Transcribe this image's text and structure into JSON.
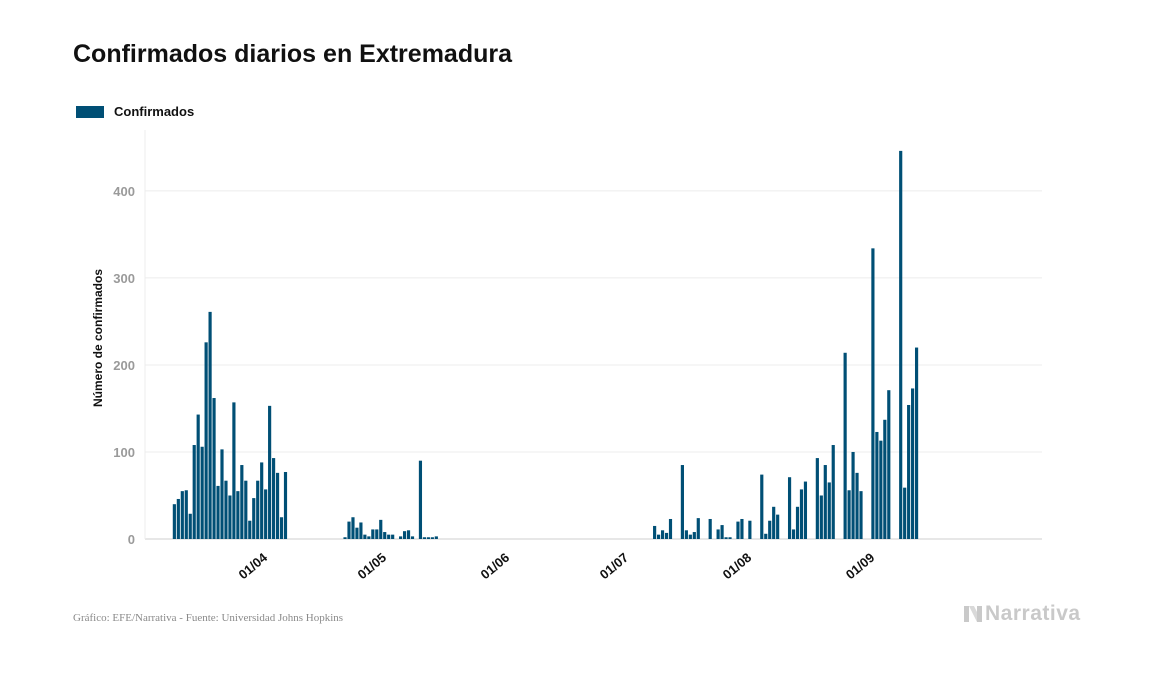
{
  "chart_data": {
    "type": "bar",
    "title": "Confirmados diarios en Extremadura",
    "ylabel": "Número de confirmados",
    "xlabel": "",
    "ylim": [
      0,
      470
    ],
    "yticks": [
      0,
      100,
      200,
      300,
      400
    ],
    "grid": true,
    "legend_position": "top-left",
    "xticks": [
      {
        "date": "2020-04-01",
        "label": "01/04"
      },
      {
        "date": "2020-05-01",
        "label": "01/05"
      },
      {
        "date": "2020-06-01",
        "label": "01/06"
      },
      {
        "date": "2020-07-01",
        "label": "01/07"
      },
      {
        "date": "2020-08-01",
        "label": "01/08"
      },
      {
        "date": "2020-09-01",
        "label": "01/09"
      }
    ],
    "x_range": [
      "2020-03-04",
      "2020-10-16"
    ],
    "series": [
      {
        "name": "Confirmados",
        "color": "#004f75",
        "points": [
          [
            "2020-03-11",
            40
          ],
          [
            "2020-03-12",
            46
          ],
          [
            "2020-03-13",
            55
          ],
          [
            "2020-03-14",
            56
          ],
          [
            "2020-03-15",
            29
          ],
          [
            "2020-03-16",
            108
          ],
          [
            "2020-03-17",
            143
          ],
          [
            "2020-03-18",
            106
          ],
          [
            "2020-03-19",
            226
          ],
          [
            "2020-03-20",
            261
          ],
          [
            "2020-03-21",
            162
          ],
          [
            "2020-03-22",
            61
          ],
          [
            "2020-03-23",
            103
          ],
          [
            "2020-03-24",
            67
          ],
          [
            "2020-03-25",
            50
          ],
          [
            "2020-03-26",
            157
          ],
          [
            "2020-03-27",
            55
          ],
          [
            "2020-03-28",
            85
          ],
          [
            "2020-03-29",
            67
          ],
          [
            "2020-03-30",
            21
          ],
          [
            "2020-03-31",
            47
          ],
          [
            "2020-04-01",
            67
          ],
          [
            "2020-04-02",
            88
          ],
          [
            "2020-04-03",
            57
          ],
          [
            "2020-04-04",
            153
          ],
          [
            "2020-04-05",
            93
          ],
          [
            "2020-04-06",
            76
          ],
          [
            "2020-04-07",
            25
          ],
          [
            "2020-04-08",
            77
          ],
          [
            "2020-04-23",
            2
          ],
          [
            "2020-04-24",
            20
          ],
          [
            "2020-04-25",
            25
          ],
          [
            "2020-04-26",
            13
          ],
          [
            "2020-04-27",
            19
          ],
          [
            "2020-04-28",
            5
          ],
          [
            "2020-04-29",
            3
          ],
          [
            "2020-04-30",
            11
          ],
          [
            "2020-05-01",
            11
          ],
          [
            "2020-05-02",
            22
          ],
          [
            "2020-05-03",
            8
          ],
          [
            "2020-05-04",
            5
          ],
          [
            "2020-05-05",
            5
          ],
          [
            "2020-05-07",
            3
          ],
          [
            "2020-05-08",
            9
          ],
          [
            "2020-05-09",
            10
          ],
          [
            "2020-05-10",
            3
          ],
          [
            "2020-05-12",
            90
          ],
          [
            "2020-05-13",
            2
          ],
          [
            "2020-05-14",
            2
          ],
          [
            "2020-05-15",
            2
          ],
          [
            "2020-05-16",
            3
          ],
          [
            "2020-07-10",
            15
          ],
          [
            "2020-07-11",
            5
          ],
          [
            "2020-07-12",
            10
          ],
          [
            "2020-07-13",
            7
          ],
          [
            "2020-07-14",
            23
          ],
          [
            "2020-07-17",
            85
          ],
          [
            "2020-07-18",
            10
          ],
          [
            "2020-07-19",
            5
          ],
          [
            "2020-07-20",
            8
          ],
          [
            "2020-07-21",
            24
          ],
          [
            "2020-07-24",
            23
          ],
          [
            "2020-07-26",
            11
          ],
          [
            "2020-07-27",
            16
          ],
          [
            "2020-07-28",
            2
          ],
          [
            "2020-07-29",
            2
          ],
          [
            "2020-07-31",
            20
          ],
          [
            "2020-08-01",
            23
          ],
          [
            "2020-08-03",
            21
          ],
          [
            "2020-08-06",
            74
          ],
          [
            "2020-08-07",
            6
          ],
          [
            "2020-08-08",
            21
          ],
          [
            "2020-08-09",
            37
          ],
          [
            "2020-08-10",
            28
          ],
          [
            "2020-08-13",
            71
          ],
          [
            "2020-08-14",
            11
          ],
          [
            "2020-08-15",
            37
          ],
          [
            "2020-08-16",
            57
          ],
          [
            "2020-08-17",
            66
          ],
          [
            "2020-08-20",
            93
          ],
          [
            "2020-08-21",
            50
          ],
          [
            "2020-08-22",
            85
          ],
          [
            "2020-08-23",
            65
          ],
          [
            "2020-08-24",
            108
          ],
          [
            "2020-08-27",
            214
          ],
          [
            "2020-08-28",
            56
          ],
          [
            "2020-08-29",
            100
          ],
          [
            "2020-08-30",
            76
          ],
          [
            "2020-08-31",
            55
          ],
          [
            "2020-09-03",
            334
          ],
          [
            "2020-09-04",
            123
          ],
          [
            "2020-09-05",
            113
          ],
          [
            "2020-09-06",
            137
          ],
          [
            "2020-09-07",
            171
          ],
          [
            "2020-09-10",
            446
          ],
          [
            "2020-09-11",
            59
          ],
          [
            "2020-09-12",
            154
          ],
          [
            "2020-09-13",
            173
          ],
          [
            "2020-09-14",
            220
          ]
        ]
      }
    ]
  },
  "footer": {
    "credit": "Gráfico: EFE/Narrativa - Fuente: Universidad Johns Hopkins",
    "brand": "Narrativa"
  }
}
